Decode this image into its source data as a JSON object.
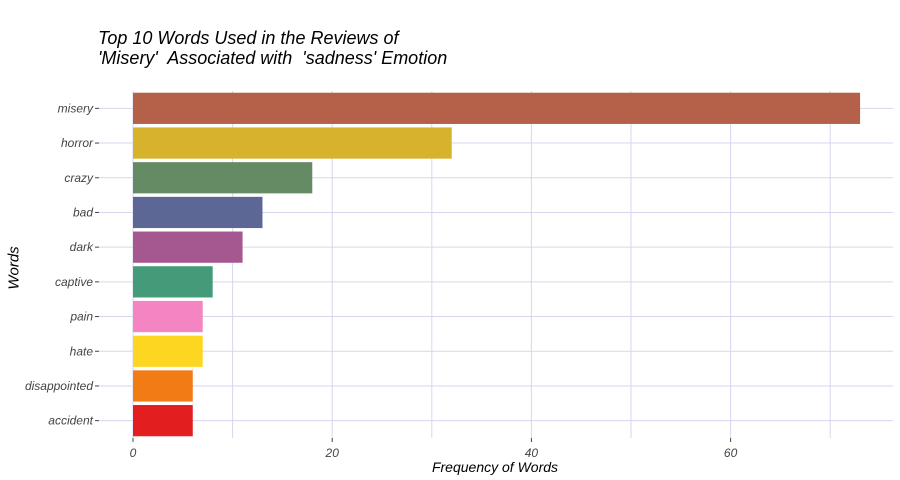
{
  "chart_data": {
    "type": "bar",
    "orientation": "horizontal",
    "title_line1": "Top 10 Words Used in the Reviews of",
    "title_line2": "'Misery'  Associated with  'sadness' Emotion",
    "xlabel": "Frequency of Words",
    "ylabel": "Words",
    "categories": [
      "misery",
      "horror",
      "crazy",
      "bad",
      "dark",
      "captive",
      "pain",
      "hate",
      "disappointed",
      "accident"
    ],
    "values": [
      73,
      32,
      18,
      13,
      11,
      8,
      7,
      7,
      6,
      6
    ],
    "colors": [
      "#B5614A",
      "#D7B32D",
      "#658B64",
      "#5C6796",
      "#A5578F",
      "#449B79",
      "#F585C2",
      "#FDD622",
      "#F17B14",
      "#E21E1E"
    ],
    "xticks": [
      0,
      20,
      40,
      60
    ],
    "xlim": [
      0,
      76.5
    ],
    "grid": true,
    "legend": false
  }
}
